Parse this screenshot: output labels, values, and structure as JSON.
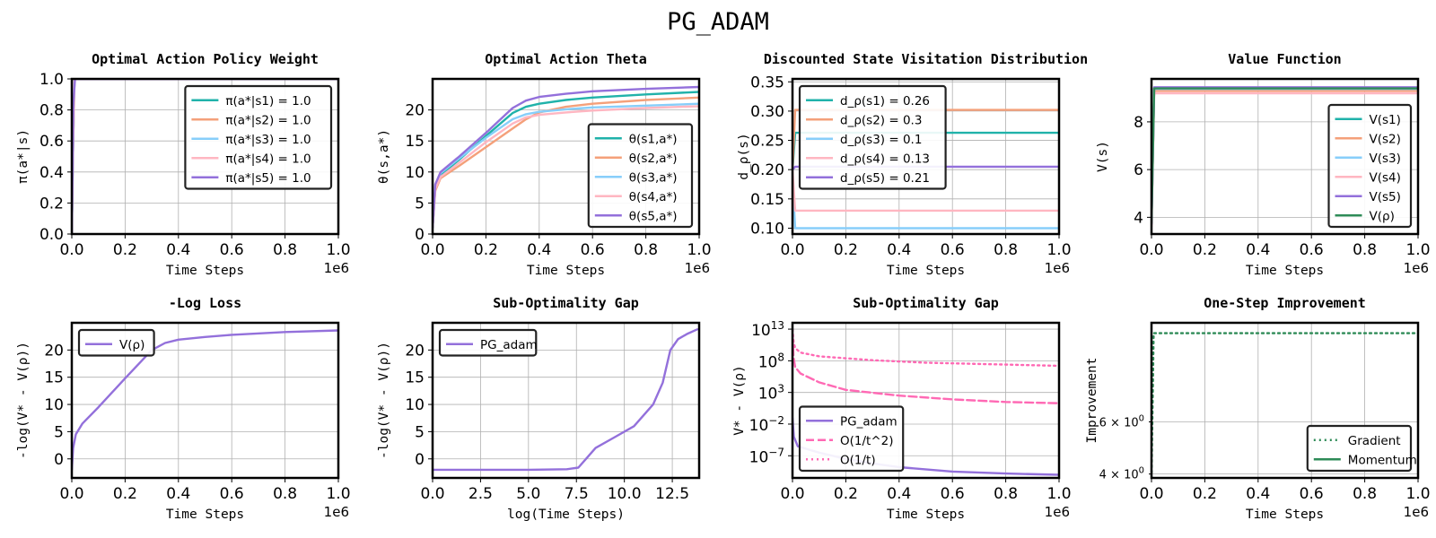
{
  "figure": {
    "title": "PG_ADAM"
  },
  "colors": {
    "s1": "#20b2aa",
    "s2": "#f4a07a",
    "s3": "#87cefa",
    "s4": "#ffb6c1",
    "s5": "#9370db",
    "v_rho": "#2e8b57",
    "pg": "#9370db",
    "o_rate": "#ff69b4",
    "gradient": "#2e8b57",
    "momentum": "#2e8b57"
  },
  "chart_data": [
    {
      "id": "policy",
      "type": "line",
      "title": "Optimal Action Policy Weight",
      "xlabel": "Time Steps",
      "ylabel": "π(a*|s)",
      "x_offset_label": "1e6",
      "xlim": [
        0,
        1.0
      ],
      "ylim": [
        0,
        1.0
      ],
      "xticks": [
        "0.0",
        "0.2",
        "0.4",
        "0.6",
        "0.8",
        "1.0"
      ],
      "yticks": [
        "0.0",
        "0.2",
        "0.4",
        "0.6",
        "0.8",
        "1.0"
      ],
      "legend_loc": "top-right",
      "series": [
        {
          "name": "π(a*|s1) = 1.0",
          "color": "s1",
          "points": [
            [
              0,
              0.01
            ],
            [
              0.004,
              0.5
            ],
            [
              0.01,
              1.0
            ],
            [
              1.0,
              1.0
            ]
          ]
        },
        {
          "name": "π(a*|s2) = 1.0",
          "color": "s2",
          "points": [
            [
              0,
              0.01
            ],
            [
              0.004,
              0.5
            ],
            [
              0.01,
              1.0
            ],
            [
              1.0,
              1.0
            ]
          ]
        },
        {
          "name": "π(a*|s3) = 1.0",
          "color": "s3",
          "points": [
            [
              0,
              0.01
            ],
            [
              0.004,
              0.5
            ],
            [
              0.01,
              1.0
            ],
            [
              1.0,
              1.0
            ]
          ]
        },
        {
          "name": "π(a*|s4) = 1.0",
          "color": "s4",
          "points": [
            [
              0,
              0.01
            ],
            [
              0.004,
              0.5
            ],
            [
              0.01,
              1.0
            ],
            [
              1.0,
              1.0
            ]
          ]
        },
        {
          "name": "π(a*|s5) = 1.0",
          "color": "s5",
          "points": [
            [
              0,
              0.0
            ],
            [
              0.003,
              0.4
            ],
            [
              0.006,
              0.85
            ],
            [
              0.012,
              1.0
            ],
            [
              1.0,
              1.0
            ]
          ]
        }
      ]
    },
    {
      "id": "theta",
      "type": "line",
      "title": "Optimal Action Theta",
      "xlabel": "Time Steps",
      "ylabel": "θ(s,a*)",
      "x_offset_label": "1e6",
      "xlim": [
        0,
        1.0
      ],
      "ylim": [
        0,
        25
      ],
      "xticks": [
        "0.0",
        "0.2",
        "0.4",
        "0.6",
        "0.8",
        "1.0"
      ],
      "yticks": [
        "0",
        "5",
        "10",
        "15",
        "20"
      ],
      "legend_loc": "lower-right",
      "series": [
        {
          "name": "θ(s1,a*)",
          "color": "s1",
          "points": [
            [
              0,
              1
            ],
            [
              0.01,
              7.5
            ],
            [
              0.03,
              9.5
            ],
            [
              0.1,
              12
            ],
            [
              0.2,
              15.8
            ],
            [
              0.3,
              19.5
            ],
            [
              0.35,
              20.5
            ],
            [
              0.4,
              21
            ],
            [
              0.5,
              21.6
            ],
            [
              0.6,
              22
            ],
            [
              0.8,
              22.5
            ],
            [
              1.0,
              22.9
            ]
          ]
        },
        {
          "name": "θ(s2,a*)",
          "color": "s2",
          "points": [
            [
              0,
              1
            ],
            [
              0.01,
              7
            ],
            [
              0.03,
              9
            ],
            [
              0.1,
              11
            ],
            [
              0.2,
              14
            ],
            [
              0.3,
              17
            ],
            [
              0.35,
              18.5
            ],
            [
              0.4,
              19.6
            ],
            [
              0.5,
              20.5
            ],
            [
              0.6,
              21
            ],
            [
              0.8,
              21.6
            ],
            [
              1.0,
              22
            ]
          ]
        },
        {
          "name": "θ(s3,a*)",
          "color": "s3",
          "points": [
            [
              0,
              1
            ],
            [
              0.01,
              7.8
            ],
            [
              0.03,
              9.8
            ],
            [
              0.1,
              12.2
            ],
            [
              0.2,
              15.5
            ],
            [
              0.3,
              18.5
            ],
            [
              0.35,
              19.3
            ],
            [
              0.4,
              19.7
            ],
            [
              0.5,
              20.1
            ],
            [
              0.6,
              20.4
            ],
            [
              0.8,
              20.7
            ],
            [
              1.0,
              21
            ]
          ]
        },
        {
          "name": "θ(s4,a*)",
          "color": "s4",
          "points": [
            [
              0,
              1
            ],
            [
              0.01,
              7.3
            ],
            [
              0.03,
              9.2
            ],
            [
              0.1,
              11.5
            ],
            [
              0.2,
              14.8
            ],
            [
              0.3,
              17.8
            ],
            [
              0.35,
              18.8
            ],
            [
              0.4,
              19.2
            ],
            [
              0.5,
              19.6
            ],
            [
              0.6,
              19.9
            ],
            [
              0.8,
              20.3
            ],
            [
              1.0,
              20.6
            ]
          ]
        },
        {
          "name": "θ(s5,a*)",
          "color": "s5",
          "points": [
            [
              0,
              1
            ],
            [
              0.01,
              8
            ],
            [
              0.03,
              10
            ],
            [
              0.1,
              12.5
            ],
            [
              0.2,
              16.3
            ],
            [
              0.3,
              20.3
            ],
            [
              0.35,
              21.5
            ],
            [
              0.4,
              22.1
            ],
            [
              0.5,
              22.6
            ],
            [
              0.6,
              23
            ],
            [
              0.8,
              23.4
            ],
            [
              1.0,
              23.7
            ]
          ]
        }
      ]
    },
    {
      "id": "visitation",
      "type": "line",
      "title": "Discounted State Visitation Distribution",
      "xlabel": "Time Steps",
      "ylabel": "d_ρ(s)",
      "x_offset_label": "1e6",
      "xlim": [
        0,
        1.0
      ],
      "ylim": [
        0.09,
        0.355
      ],
      "xticks": [
        "0.0",
        "0.2",
        "0.4",
        "0.6",
        "0.8",
        "1.0"
      ],
      "yticks": [
        "0.10",
        "0.15",
        "0.20",
        "0.25",
        "0.30",
        "0.35"
      ],
      "legend_loc": "top-left",
      "series": [
        {
          "name": "d_ρ(s1) = 0.26",
          "color": "s1",
          "points": [
            [
              0,
              0.2
            ],
            [
              0.01,
              0.263
            ],
            [
              1.0,
              0.263
            ]
          ]
        },
        {
          "name": "d_ρ(s2) = 0.3",
          "color": "s2",
          "points": [
            [
              0,
              0.2
            ],
            [
              0.01,
              0.302
            ],
            [
              1.0,
              0.302
            ]
          ]
        },
        {
          "name": "d_ρ(s3) = 0.1",
          "color": "s3",
          "points": [
            [
              0,
              0.185
            ],
            [
              0.01,
              0.1
            ],
            [
              1.0,
              0.1
            ]
          ]
        },
        {
          "name": "d_ρ(s4) = 0.13",
          "color": "s4",
          "points": [
            [
              0,
              0.2
            ],
            [
              0.01,
              0.13
            ],
            [
              1.0,
              0.13
            ]
          ]
        },
        {
          "name": "d_ρ(s5) = 0.21",
          "color": "s5",
          "points": [
            [
              0,
              0.2
            ],
            [
              0.01,
              0.205
            ],
            [
              1.0,
              0.205
            ]
          ]
        }
      ]
    },
    {
      "id": "value",
      "type": "line",
      "title": "Value Function",
      "xlabel": "Time Steps",
      "ylabel": "V(s)",
      "x_offset_label": "1e6",
      "xlim": [
        0,
        1.0
      ],
      "ylim": [
        3.3,
        9.8
      ],
      "xticks": [
        "0.0",
        "0.2",
        "0.4",
        "0.6",
        "0.8",
        "1.0"
      ],
      "yticks": [
        "4",
        "6",
        "8"
      ],
      "legend_loc": "lower-right",
      "series": [
        {
          "name": "V(s1)",
          "color": "s1",
          "points": [
            [
              0,
              3.8
            ],
            [
              0.01,
              9.42
            ],
            [
              1.0,
              9.42
            ]
          ]
        },
        {
          "name": "V(s2)",
          "color": "s2",
          "points": [
            [
              0,
              3.7
            ],
            [
              0.01,
              9.3
            ],
            [
              1.0,
              9.3
            ]
          ]
        },
        {
          "name": "V(s3)",
          "color": "s3",
          "points": [
            [
              0,
              3.8
            ],
            [
              0.01,
              9.38
            ],
            [
              1.0,
              9.38
            ]
          ]
        },
        {
          "name": "V(s4)",
          "color": "s4",
          "points": [
            [
              0,
              3.6
            ],
            [
              0.01,
              9.2
            ],
            [
              1.0,
              9.2
            ]
          ]
        },
        {
          "name": "V(s5)",
          "color": "s5",
          "points": [
            [
              0,
              3.7
            ],
            [
              0.01,
              9.45
            ],
            [
              1.0,
              9.45
            ]
          ]
        },
        {
          "name": "V(ρ)",
          "color": "v_rho",
          "points": [
            [
              0,
              3.75
            ],
            [
              0.01,
              9.4
            ],
            [
              1.0,
              9.4
            ]
          ]
        }
      ]
    },
    {
      "id": "logloss",
      "type": "line",
      "title": "-Log Loss",
      "xlabel": "Time Steps",
      "ylabel": "-log(V* - V(ρ))",
      "x_offset_label": "1e6",
      "xlim": [
        0,
        1.0
      ],
      "ylim": [
        -3.5,
        25
      ],
      "xticks": [
        "0.0",
        "0.2",
        "0.4",
        "0.6",
        "0.8",
        "1.0"
      ],
      "yticks": [
        "0",
        "5",
        "10",
        "15",
        "20"
      ],
      "legend_loc": "top-left",
      "series": [
        {
          "name": "V(ρ)",
          "color": "pg",
          "points": [
            [
              0,
              -2
            ],
            [
              0.005,
              2
            ],
            [
              0.015,
              4.5
            ],
            [
              0.04,
              6.5
            ],
            [
              0.1,
              9.5
            ],
            [
              0.2,
              14.8
            ],
            [
              0.3,
              20
            ],
            [
              0.35,
              21.3
            ],
            [
              0.4,
              21.9
            ],
            [
              0.5,
              22.4
            ],
            [
              0.6,
              22.8
            ],
            [
              0.8,
              23.3
            ],
            [
              1.0,
              23.6
            ]
          ]
        }
      ]
    },
    {
      "id": "gap_log",
      "type": "line",
      "title": "Sub-Optimality Gap",
      "xlabel": "log(Time Steps)",
      "ylabel": "-log(V* - V(ρ))",
      "xlim": [
        0,
        13.9
      ],
      "ylim": [
        -3.5,
        25
      ],
      "xticks": [
        "0.0",
        "2.5",
        "5.0",
        "7.5",
        "10.0",
        "12.5"
      ],
      "yticks": [
        "0",
        "5",
        "10",
        "15",
        "20"
      ],
      "legend_loc": "top-left",
      "series": [
        {
          "name": "PG_adam",
          "color": "pg",
          "points": [
            [
              0,
              -2
            ],
            [
              5,
              -2
            ],
            [
              7,
              -1.9
            ],
            [
              7.6,
              -1.6
            ],
            [
              8,
              0
            ],
            [
              8.5,
              2
            ],
            [
              9.5,
              4
            ],
            [
              10.5,
              6
            ],
            [
              11.5,
              10
            ],
            [
              12,
              14
            ],
            [
              12.4,
              20
            ],
            [
              12.8,
              22
            ],
            [
              13.3,
              23
            ],
            [
              13.8,
              23.8
            ]
          ]
        }
      ]
    },
    {
      "id": "gap_rate",
      "type": "line",
      "title": "Sub-Optimality Gap",
      "xlabel": "Time Steps",
      "ylabel": "V* - V(ρ)",
      "x_offset_label": "1e6",
      "y_scale": "log",
      "xlim": [
        0,
        1.0
      ],
      "ylim": [
        -10.5,
        14
      ],
      "xticks": [
        "0.0",
        "0.2",
        "0.4",
        "0.6",
        "0.8",
        "1.0"
      ],
      "yticks_exp": [
        -7,
        -2,
        3,
        8,
        13
      ],
      "legend_loc": "lower-left",
      "series": [
        {
          "name": "PG_adam",
          "color": "pg",
          "style": "solid",
          "points": [
            [
              0,
              -1
            ],
            [
              0.005,
              -4
            ],
            [
              0.02,
              -5.5
            ],
            [
              0.1,
              -6.5
            ],
            [
              0.2,
              -7.5
            ],
            [
              0.3,
              -8.2
            ],
            [
              0.4,
              -8.8
            ],
            [
              0.6,
              -9.5
            ],
            [
              0.8,
              -9.8
            ],
            [
              1.0,
              -10
            ]
          ]
        },
        {
          "name": "O(1/t^2)",
          "color": "o_rate",
          "style": "dashed",
          "points": [
            [
              0,
              12
            ],
            [
              0.004,
              8.5
            ],
            [
              0.01,
              7
            ],
            [
              0.03,
              6
            ],
            [
              0.1,
              4.6
            ],
            [
              0.2,
              3.4
            ],
            [
              0.4,
              2.5
            ],
            [
              0.6,
              1.9
            ],
            [
              0.8,
              1.5
            ],
            [
              1.0,
              1.3
            ]
          ]
        },
        {
          "name": "O(1/t)",
          "color": "o_rate",
          "style": "dotted",
          "points": [
            [
              0,
              13
            ],
            [
              0.004,
              11
            ],
            [
              0.01,
              10
            ],
            [
              0.03,
              9.3
            ],
            [
              0.1,
              8.7
            ],
            [
              0.3,
              8.1
            ],
            [
              0.5,
              7.7
            ],
            [
              0.7,
              7.5
            ],
            [
              1.0,
              7.2
            ]
          ]
        }
      ]
    },
    {
      "id": "improvement",
      "type": "line",
      "title": "One-Step Improvement",
      "xlabel": "Time Steps",
      "ylabel": "Improvement",
      "x_offset_label": "1e6",
      "xlim": [
        0,
        1.0
      ],
      "ylim": [
        3.85,
        9.8
      ],
      "xticks": [
        "0.0",
        "0.2",
        "0.4",
        "0.6",
        "0.8",
        "1.0"
      ],
      "yticks_minor_log": [
        [
          "4",
          "0"
        ],
        [
          "6",
          "0"
        ]
      ],
      "legend_loc": "lower-right",
      "series": [
        {
          "name": "Gradient",
          "color": "gradient",
          "style": "dotted",
          "points": [
            [
              0,
              3.85
            ],
            [
              0.008,
              9.4
            ],
            [
              1.0,
              9.4
            ]
          ]
        },
        {
          "name": "Momentum",
          "color": "momentum",
          "style": "solid",
          "points": []
        }
      ]
    }
  ]
}
